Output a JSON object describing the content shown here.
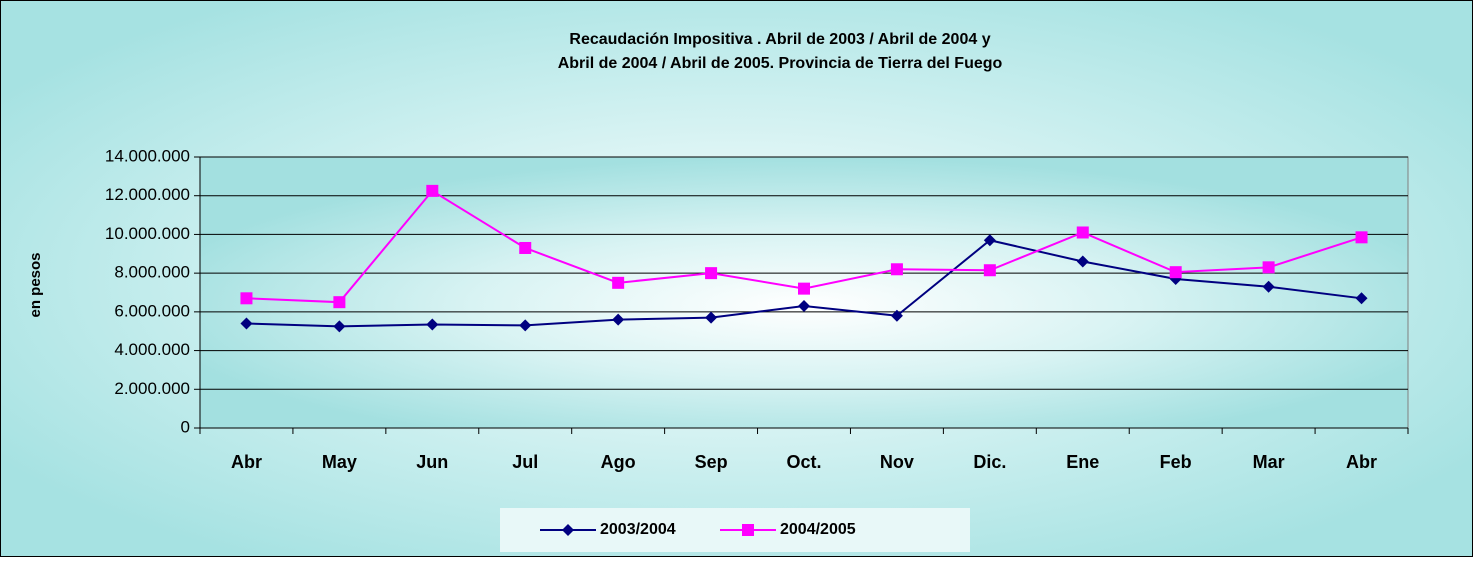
{
  "chart_data": {
    "type": "line",
    "title": [
      "Recaudación Impositiva . Abril de 2003 / Abril de 2004 y",
      "Abril de 2004 / Abril de 2005. Provincia de Tierra del Fuego"
    ],
    "y_label": "en pesos",
    "categories": [
      "Abr",
      "May",
      "Jun",
      "Jul",
      "Ago",
      "Sep",
      "Oct.",
      "Nov",
      "Dic.",
      "Ene",
      "Feb",
      "Mar",
      "Abr"
    ],
    "series": [
      {
        "name": "2003/2004",
        "color": "#000080",
        "marker": "diamond",
        "values": [
          5400000,
          5250000,
          5350000,
          5300000,
          5600000,
          5700000,
          6300000,
          5800000,
          9700000,
          8600000,
          7700000,
          7300000,
          6700000
        ]
      },
      {
        "name": "2004/2005",
        "color": "#ff00ff",
        "marker": "square",
        "values": [
          6700000,
          6500000,
          12250000,
          9300000,
          7500000,
          8000000,
          7200000,
          8200000,
          8150000,
          10100000,
          8050000,
          8300000,
          9850000
        ]
      }
    ],
    "ylim": [
      0,
      14000000
    ],
    "yticks": [
      0,
      {
        "value": 2000000,
        "label": "2.000.000"
      },
      {
        "value": 4000000,
        "label": "4.000.000"
      },
      {
        "value": 6000000,
        "label": "6.000.000"
      },
      {
        "value": 8000000,
        "label": "8.000.000"
      },
      {
        "value": 10000000,
        "label": "10.000.000"
      },
      {
        "value": 12000000,
        "label": "12.000.000"
      },
      {
        "value": 14000000,
        "label": "14.000.000"
      }
    ],
    "grid": true,
    "legend": "bottom"
  }
}
